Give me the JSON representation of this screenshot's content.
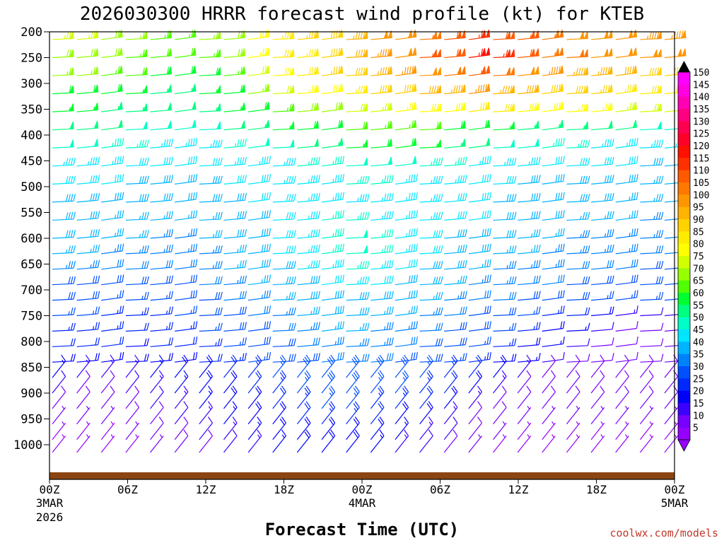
{
  "chart_data": {
    "type": "wind barb time-height profile",
    "title": "2026030300 HRRR forecast wind profile (kt) for KTEB",
    "xlabel": "Forecast Time (UTC)",
    "credit": "coolwx.com/models",
    "y_axis": {
      "label_unit": "hPa",
      "ticks": [
        "200",
        "250",
        "300",
        "350",
        "400",
        "450",
        "500",
        "550",
        "600",
        "650",
        "700",
        "750",
        "800",
        "850",
        "900",
        "950",
        "1000"
      ]
    },
    "x_axis": {
      "range_hours": [
        0,
        48
      ],
      "ticks": [
        {
          "hour": 0,
          "label": "00Z",
          "date": "3MAR",
          "year": "2026"
        },
        {
          "hour": 6,
          "label": "06Z"
        },
        {
          "hour": 12,
          "label": "12Z"
        },
        {
          "hour": 18,
          "label": "18Z"
        },
        {
          "hour": 24,
          "label": "00Z",
          "date": "4MAR"
        },
        {
          "hour": 30,
          "label": "06Z"
        },
        {
          "hour": 36,
          "label": "12Z"
        },
        {
          "hour": 42,
          "label": "18Z"
        },
        {
          "hour": 48,
          "label": "00Z",
          "date": "5MAR"
        }
      ]
    },
    "colorbar": {
      "unit": "kt",
      "labels": [
        "150",
        "145",
        "140",
        "135",
        "130",
        "125",
        "120",
        "115",
        "110",
        "105",
        "100",
        "95",
        "90",
        "85",
        "80",
        "75",
        "70",
        "65",
        "60",
        "55",
        "50",
        "45",
        "40",
        "35",
        "30",
        "25",
        "20",
        "15",
        "10",
        "5"
      ],
      "colors": [
        "#ff00ff",
        "#ff00e0",
        "#ff00b4",
        "#ff0080",
        "#ff0050",
        "#ff0028",
        "#ff1000",
        "#ff3000",
        "#ff5a00",
        "#ff7800",
        "#ff9600",
        "#ffb400",
        "#ffd200",
        "#ffeb00",
        "#ffff00",
        "#d2ff00",
        "#96ff00",
        "#50ff00",
        "#00ff30",
        "#00ff80",
        "#00ffc8",
        "#00e6ff",
        "#00b4ff",
        "#0082ff",
        "#0050ff",
        "#0028ff",
        "#0000ff",
        "#3c00ff",
        "#7800ff",
        "#9600ff"
      ]
    },
    "series": [
      {
        "level": 215,
        "speed_kt": [
          75,
          75,
          72,
          68,
          65,
          65,
          68,
          72,
          80,
          85,
          88,
          92,
          95,
          100,
          102,
          105,
          110,
          115,
          112,
          108,
          105,
          102,
          100,
          100,
          98,
          98
        ]
      },
      {
        "level": 250,
        "speed_kt": [
          72,
          72,
          70,
          67,
          64,
          64,
          66,
          70,
          78,
          84,
          86,
          90,
          94,
          98,
          102,
          108,
          112,
          118,
          115,
          110,
          106,
          104,
          102,
          100,
          100,
          100
        ]
      },
      {
        "level": 285,
        "speed_kt": [
          68,
          68,
          66,
          63,
          60,
          60,
          62,
          66,
          74,
          80,
          84,
          88,
          92,
          95,
          98,
          102,
          104,
          108,
          104,
          100,
          98,
          96,
          96,
          94,
          92,
          92
        ]
      },
      {
        "level": 320,
        "speed_kt": [
          62,
          62,
          60,
          58,
          56,
          56,
          58,
          62,
          68,
          74,
          78,
          82,
          86,
          90,
          92,
          94,
          96,
          98,
          96,
          94,
          92,
          90,
          88,
          86,
          84,
          84
        ]
      },
      {
        "level": 355,
        "speed_kt": [
          58,
          58,
          57,
          55,
          53,
          53,
          55,
          58,
          62,
          66,
          70,
          72,
          74,
          76,
          78,
          80,
          82,
          84,
          84,
          82,
          80,
          78,
          78,
          76,
          74,
          74
        ]
      },
      {
        "level": 390,
        "speed_kt": [
          54,
          54,
          53,
          52,
          50,
          50,
          52,
          54,
          56,
          58,
          60,
          62,
          64,
          66,
          66,
          64,
          62,
          60,
          58,
          56,
          55,
          55,
          54,
          53,
          52,
          52
        ]
      },
      {
        "level": 425,
        "speed_kt": [
          50,
          50,
          49,
          48,
          46,
          46,
          47,
          48,
          50,
          52,
          54,
          56,
          58,
          60,
          60,
          58,
          56,
          54,
          52,
          50,
          48,
          48,
          47,
          46,
          45,
          45
        ]
      },
      {
        "level": 460,
        "speed_kt": [
          46,
          46,
          45,
          44,
          43,
          43,
          44,
          45,
          46,
          47,
          48,
          49,
          50,
          51,
          50,
          49,
          48,
          47,
          46,
          45,
          44,
          44,
          43,
          43,
          42,
          42
        ]
      },
      {
        "level": 495,
        "speed_kt": [
          44,
          44,
          43,
          42,
          41,
          41,
          42,
          43,
          44,
          45,
          46,
          47,
          48,
          48,
          47,
          46,
          45,
          44,
          43,
          42,
          41,
          41,
          40,
          40,
          39,
          39
        ]
      },
      {
        "level": 530,
        "speed_kt": [
          42,
          42,
          41,
          40,
          40,
          40,
          41,
          42,
          43,
          44,
          45,
          46,
          47,
          47,
          46,
          45,
          44,
          43,
          42,
          41,
          40,
          40,
          40,
          39,
          39,
          39
        ]
      },
      {
        "level": 565,
        "speed_kt": [
          40,
          40,
          39,
          38,
          38,
          38,
          39,
          40,
          42,
          44,
          46,
          48,
          48,
          47,
          46,
          45,
          44,
          43,
          42,
          41,
          40,
          39,
          38,
          38,
          37,
          37
        ]
      },
      {
        "level": 600,
        "speed_kt": [
          40,
          40,
          39,
          38,
          37,
          37,
          38,
          40,
          42,
          44,
          46,
          48,
          50,
          48,
          46,
          44,
          42,
          41,
          40,
          39,
          38,
          37,
          36,
          36,
          35,
          35
        ]
      },
      {
        "level": 630,
        "speed_kt": [
          38,
          38,
          37,
          36,
          35,
          35,
          37,
          39,
          41,
          43,
          46,
          48,
          50,
          48,
          46,
          43,
          41,
          40,
          39,
          38,
          37,
          36,
          35,
          35,
          34,
          34
        ]
      },
      {
        "level": 660,
        "speed_kt": [
          35,
          35,
          34,
          33,
          33,
          34,
          36,
          38,
          40,
          42,
          45,
          47,
          48,
          46,
          44,
          42,
          40,
          38,
          37,
          36,
          35,
          34,
          33,
          33,
          32,
          32
        ]
      },
      {
        "level": 690,
        "speed_kt": [
          32,
          32,
          31,
          30,
          31,
          32,
          34,
          36,
          38,
          40,
          42,
          44,
          45,
          44,
          42,
          40,
          38,
          36,
          35,
          34,
          33,
          32,
          31,
          31,
          30,
          30
        ]
      },
      {
        "level": 720,
        "speed_kt": [
          30,
          30,
          29,
          28,
          29,
          30,
          32,
          34,
          36,
          38,
          40,
          42,
          42,
          41,
          40,
          38,
          36,
          34,
          33,
          32,
          31,
          30,
          29,
          28,
          28,
          28
        ]
      },
      {
        "level": 750,
        "speed_kt": [
          28,
          28,
          27,
          26,
          27,
          28,
          30,
          32,
          34,
          36,
          38,
          40,
          40,
          39,
          38,
          36,
          34,
          32,
          30,
          28,
          26,
          24,
          20,
          16,
          14,
          14
        ]
      },
      {
        "level": 780,
        "speed_kt": [
          26,
          26,
          25,
          24,
          25,
          26,
          28,
          30,
          32,
          34,
          36,
          38,
          38,
          37,
          36,
          34,
          32,
          30,
          28,
          26,
          22,
          18,
          14,
          12,
          12,
          12
        ]
      },
      {
        "level": 810,
        "speed_kt": [
          24,
          24,
          23,
          22,
          23,
          24,
          26,
          28,
          30,
          32,
          34,
          36,
          36,
          35,
          34,
          32,
          30,
          28,
          26,
          22,
          18,
          14,
          12,
          10,
          10,
          10
        ]
      },
      {
        "level": 840,
        "speed_kt": [
          22,
          22,
          21,
          20,
          21,
          22,
          24,
          26,
          28,
          30,
          32,
          34,
          34,
          33,
          32,
          30,
          28,
          26,
          22,
          18,
          14,
          12,
          10,
          10,
          10,
          10
        ]
      },
      {
        "level": 870,
        "speed_kt": [
          18,
          16,
          15,
          16,
          18,
          20,
          22,
          24,
          26,
          28,
          30,
          32,
          32,
          31,
          30,
          28,
          26,
          24,
          20,
          16,
          12,
          10,
          10,
          10,
          10,
          10
        ]
      },
      {
        "level": 900,
        "speed_kt": [
          14,
          12,
          12,
          14,
          16,
          18,
          20,
          22,
          24,
          26,
          28,
          30,
          30,
          29,
          28,
          26,
          24,
          20,
          16,
          12,
          10,
          10,
          10,
          10,
          10,
          10
        ]
      },
      {
        "level": 930,
        "speed_kt": [
          10,
          10,
          10,
          12,
          14,
          16,
          18,
          20,
          22,
          24,
          26,
          28,
          28,
          27,
          26,
          24,
          20,
          16,
          12,
          10,
          10,
          10,
          10,
          10,
          10,
          10
        ]
      },
      {
        "level": 960,
        "speed_kt": [
          8,
          8,
          8,
          10,
          12,
          14,
          16,
          18,
          20,
          22,
          24,
          26,
          26,
          24,
          22,
          20,
          16,
          12,
          10,
          8,
          8,
          8,
          8,
          8,
          8,
          8
        ]
      },
      {
        "level": 990,
        "speed_kt": [
          6,
          6,
          6,
          8,
          10,
          12,
          14,
          16,
          18,
          20,
          22,
          22,
          22,
          20,
          18,
          16,
          14,
          10,
          8,
          6,
          6,
          6,
          6,
          6,
          6,
          6
        ]
      },
      {
        "level": 1015,
        "speed_kt": [
          5,
          5,
          5,
          6,
          8,
          10,
          12,
          14,
          16,
          18,
          20,
          20,
          20,
          18,
          16,
          14,
          12,
          8,
          6,
          5,
          5,
          5,
          5,
          5,
          5,
          5
        ]
      }
    ]
  }
}
